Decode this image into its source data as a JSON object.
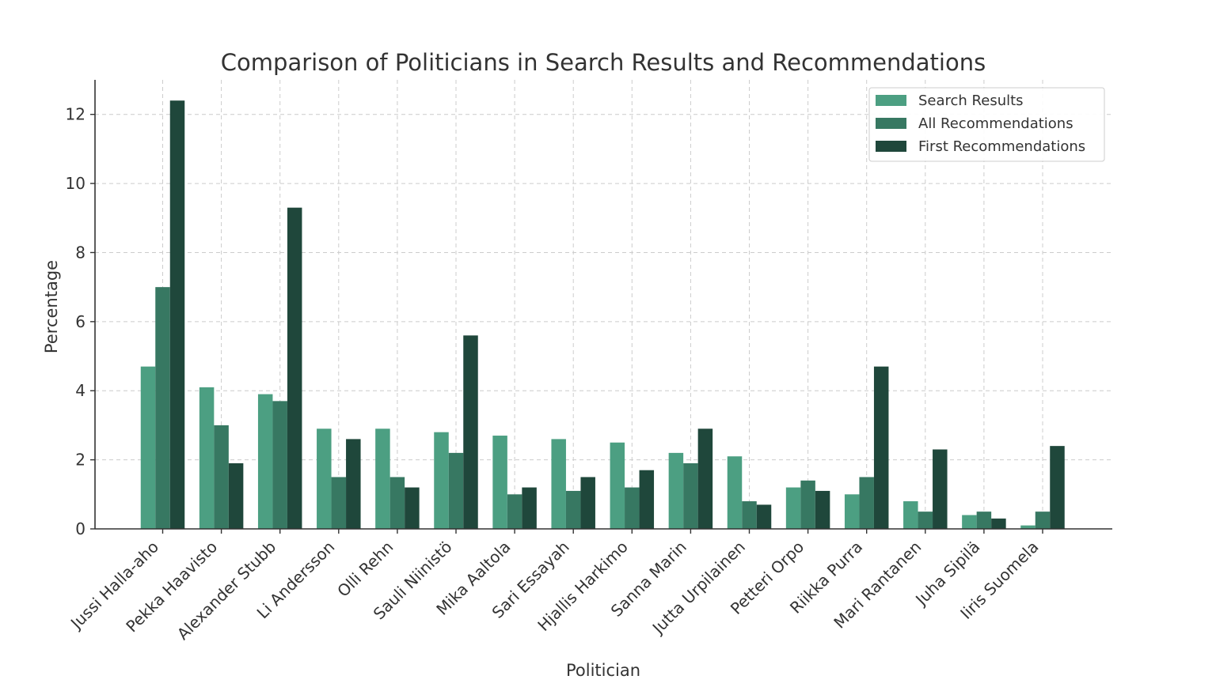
{
  "chart_data": {
    "type": "bar",
    "title": "Comparison of Politicians in Search Results and Recommendations",
    "xlabel": "Politician",
    "ylabel": "Percentage",
    "ylim": [
      0,
      13
    ],
    "yticks": [
      0,
      2,
      4,
      6,
      8,
      10,
      12
    ],
    "grid": true,
    "legend_position": "top-right",
    "categories": [
      "Jussi Halla-aho",
      "Pekka Haavisto",
      "Alexander Stubb",
      "Li Andersson",
      "Olli Rehn",
      "Sauli Niinistö",
      "Mika Aaltola",
      "Sari Essayah",
      "Hjallis Harkimo",
      "Sanna Marin",
      "Jutta Urpilainen",
      "Petteri Orpo",
      "Riikka Purra",
      "Mari Rantanen",
      "Juha Sipilä",
      "Iiris Suomela"
    ],
    "series": [
      {
        "name": "Search Results",
        "color": "#4c9f82",
        "values": [
          4.7,
          4.1,
          3.9,
          2.9,
          2.9,
          2.8,
          2.7,
          2.6,
          2.5,
          2.2,
          2.1,
          1.2,
          1.0,
          0.8,
          0.4,
          0.1
        ]
      },
      {
        "name": "All Recommendations",
        "color": "#377862",
        "values": [
          7.0,
          3.0,
          3.7,
          1.5,
          1.5,
          2.2,
          1.0,
          1.1,
          1.2,
          1.9,
          0.8,
          1.4,
          1.5,
          0.5,
          0.5,
          0.5
        ]
      },
      {
        "name": "First Recommendations",
        "color": "#1f473b",
        "values": [
          12.4,
          1.9,
          9.3,
          2.6,
          1.2,
          5.6,
          1.2,
          1.5,
          1.7,
          2.9,
          0.7,
          1.1,
          4.7,
          2.3,
          0.3,
          2.4
        ]
      }
    ]
  }
}
